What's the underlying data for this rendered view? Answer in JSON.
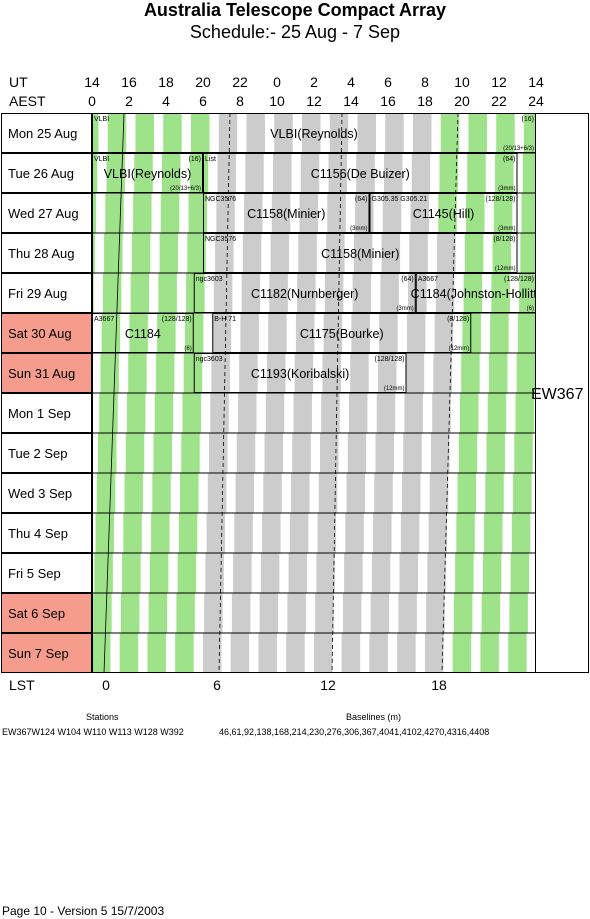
{
  "header": {
    "title": "Australia Telescope Compact Array",
    "subtitle": "Schedule:- 25 Aug - 7  Sep"
  },
  "axes": {
    "ut_label": "UT",
    "aest_label": "AEST",
    "ut_ticks": [
      "14",
      "16",
      "18",
      "20",
      "22",
      "0",
      "2",
      "4",
      "6",
      "8",
      "10",
      "12",
      "14"
    ],
    "aest_ticks": [
      "0",
      "2",
      "4",
      "6",
      "8",
      "10",
      "12",
      "14",
      "16",
      "18",
      "20",
      "22",
      "24"
    ],
    "lst_label": "LST",
    "lst_ticks": [
      "0",
      "6",
      "12",
      "18"
    ]
  },
  "days": [
    {
      "label": "Mon  25 Aug",
      "weekend": false
    },
    {
      "label": "Tue  26 Aug",
      "weekend": false
    },
    {
      "label": "Wed  27 Aug",
      "weekend": false
    },
    {
      "label": "Thu  28 Aug",
      "weekend": false
    },
    {
      "label": "Fri   29 Aug",
      "weekend": false
    },
    {
      "label": "Sat   30 Aug",
      "weekend": true
    },
    {
      "label": "Sun  31 Aug",
      "weekend": true
    },
    {
      "label": "Mon   1  Sep",
      "weekend": false
    },
    {
      "label": "Tue   2  Sep",
      "weekend": false
    },
    {
      "label": "Wed   3  Sep",
      "weekend": false
    },
    {
      "label": "Thu   4  Sep",
      "weekend": false
    },
    {
      "label": "Fri    5  Sep",
      "weekend": false
    },
    {
      "label": "Sat    6  Sep",
      "weekend": true
    },
    {
      "label": "Sun   7  Sep",
      "weekend": true
    }
  ],
  "configuration": "EW367",
  "colors": {
    "night_stripe": "#9ee38a",
    "day_stripe": "#cccccc",
    "weekend": "#f59c8c"
  },
  "blocks": [
    {
      "day": 0,
      "start": 0,
      "end": 24,
      "title": "VLBI(Reynolds)",
      "tl": "VLBI",
      "tr": "(16)",
      "br": "(20/13+6/3)"
    },
    {
      "day": 1,
      "start": 0,
      "end": 6,
      "title": "VLBI(Reynolds)",
      "tl": "VLBI",
      "tr": "(16)",
      "br": "(20/13+6/3)"
    },
    {
      "day": 1,
      "start": 6,
      "end": 23,
      "title": "C1156(De Buizer)",
      "tl": "List",
      "tr": "(64)",
      "br": "(3mm)"
    },
    {
      "day": 2,
      "start": 6,
      "end": 15,
      "title": "C1158(Minier)",
      "tl": "NGC3576",
      "tr": "(64)",
      "br": "(3mm)"
    },
    {
      "day": 2,
      "start": 15,
      "end": 23,
      "title": "C1145(Hill)",
      "tl": "G305.35 G305.21",
      "tr": "(128/128)",
      "br": "(3mm)"
    },
    {
      "day": 3,
      "start": 6,
      "end": 23,
      "title": "C1158(Minier)",
      "tl": "NGC3576",
      "tr": "(8/128)",
      "br": "(12mm)"
    },
    {
      "day": 4,
      "start": 5.5,
      "end": 17.5,
      "title": "C1182(Nurnberger)",
      "tl": "ngc3603",
      "tr": "(64)",
      "br": "(3mm)"
    },
    {
      "day": 4,
      "start": 17.5,
      "end": 24,
      "title": "C1184(Johnston-Hollitt)",
      "tl": "A3667",
      "tr": "(128/128)",
      "br": "(6)"
    },
    {
      "day": 5,
      "start": 0,
      "end": 5.5,
      "title": "C1184",
      "tl": "A3667",
      "tr": "(128/128)",
      "br": "(6)"
    },
    {
      "day": 5,
      "start": 6.5,
      "end": 20.5,
      "title": "C1175(Bourke)",
      "tl": "B-H 71",
      "tr": "(8/128)",
      "br": "(12mm)"
    },
    {
      "day": 6,
      "start": 5.5,
      "end": 17,
      "title": "C1193(Koribalski)",
      "tl": "ngc3603",
      "tr": "(128/128)",
      "br": "(12mm)"
    }
  ],
  "bottom": {
    "stations_title": "Stations",
    "stations": "EW367W124 W104 W110 W113 W128 W392",
    "baselines_title": "Baselines (m)",
    "baselines": "46,61,92,138,168,214,230,276,306,367,4041,4102,4270,4316,4408"
  },
  "footer": "Page 10 - Version 5  15/7/2003"
}
